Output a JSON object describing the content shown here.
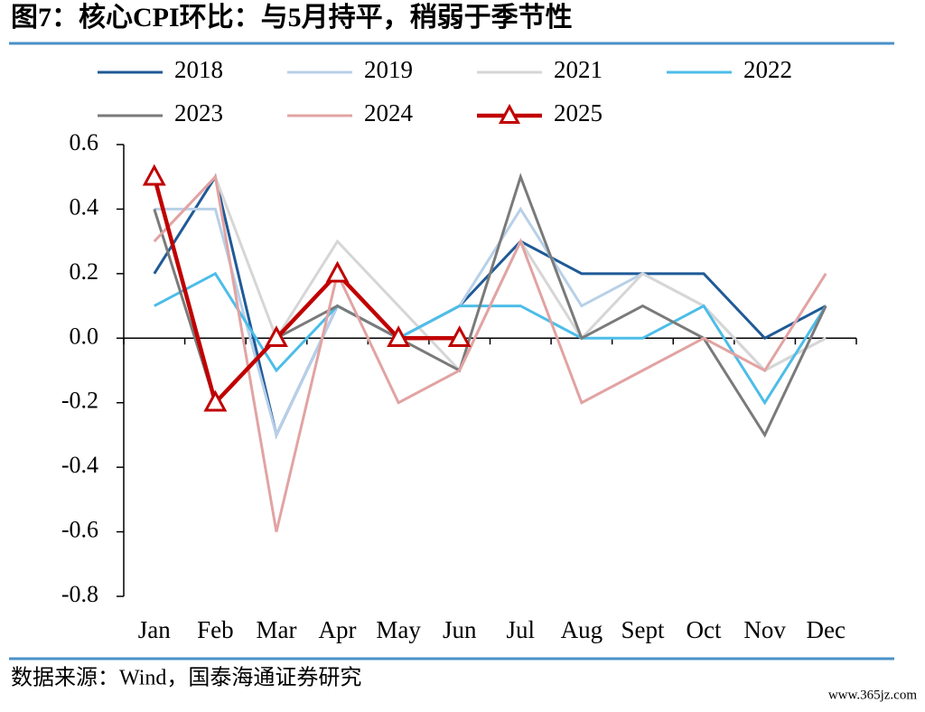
{
  "chart_data": {
    "type": "line",
    "title": "图7：核心CPI环比：与5月持平，稍弱于季节性",
    "source": "数据来源：Wind，国泰海通证券研究",
    "watermark": "www.365jz.com",
    "categories": [
      "Jan",
      "Feb",
      "Mar",
      "Apr",
      "May",
      "Jun",
      "Jul",
      "Aug",
      "Sept",
      "Oct",
      "Nov",
      "Dec"
    ],
    "ylim": [
      -0.8,
      0.6
    ],
    "yticks": [
      -0.8,
      -0.6,
      -0.4,
      -0.2,
      {
        "value": 0,
        "label": "0.0"
      },
      0.2,
      0.4,
      0.6
    ],
    "series": [
      {
        "name": "2018",
        "color": "#1f5a96",
        "values": [
          0.2,
          0.5,
          -0.3,
          0.1,
          0.0,
          0.1,
          0.3,
          0.2,
          0.2,
          0.2,
          0.0,
          0.1
        ]
      },
      {
        "name": "2019",
        "color": "#b8d0e8",
        "values": [
          0.4,
          0.4,
          -0.3,
          0.1,
          0.0,
          0.1,
          0.4,
          0.1,
          0.2,
          0.1,
          -0.1,
          0.0
        ]
      },
      {
        "name": "2021",
        "color": "#d6d6d6",
        "values": [
          0.3,
          0.5,
          0.0,
          0.3,
          0.1,
          -0.1,
          0.3,
          0.0,
          0.2,
          0.1,
          -0.1,
          0.0
        ]
      },
      {
        "name": "2022",
        "color": "#4dbde8",
        "values": [
          0.1,
          0.2,
          -0.1,
          0.1,
          0.0,
          0.1,
          0.1,
          0.0,
          0.0,
          0.1,
          -0.2,
          0.1
        ]
      },
      {
        "name": "2023",
        "color": "#7a7a7a",
        "values": [
          0.4,
          -0.2,
          0.0,
          0.1,
          0.0,
          -0.1,
          0.5,
          0.0,
          0.1,
          0.0,
          -0.3,
          0.1
        ]
      },
      {
        "name": "2024",
        "color": "#e2a3a3",
        "values": [
          0.3,
          0.5,
          -0.6,
          0.2,
          -0.2,
          -0.1,
          0.3,
          -0.2,
          -0.1,
          0.0,
          -0.1,
          0.2
        ]
      },
      {
        "name": "2025",
        "color": "#c00000",
        "marker": "triangle",
        "values": [
          0.5,
          -0.2,
          0.0,
          0.2,
          0.0,
          0.0,
          null,
          null,
          null,
          null,
          null,
          null
        ]
      }
    ]
  }
}
